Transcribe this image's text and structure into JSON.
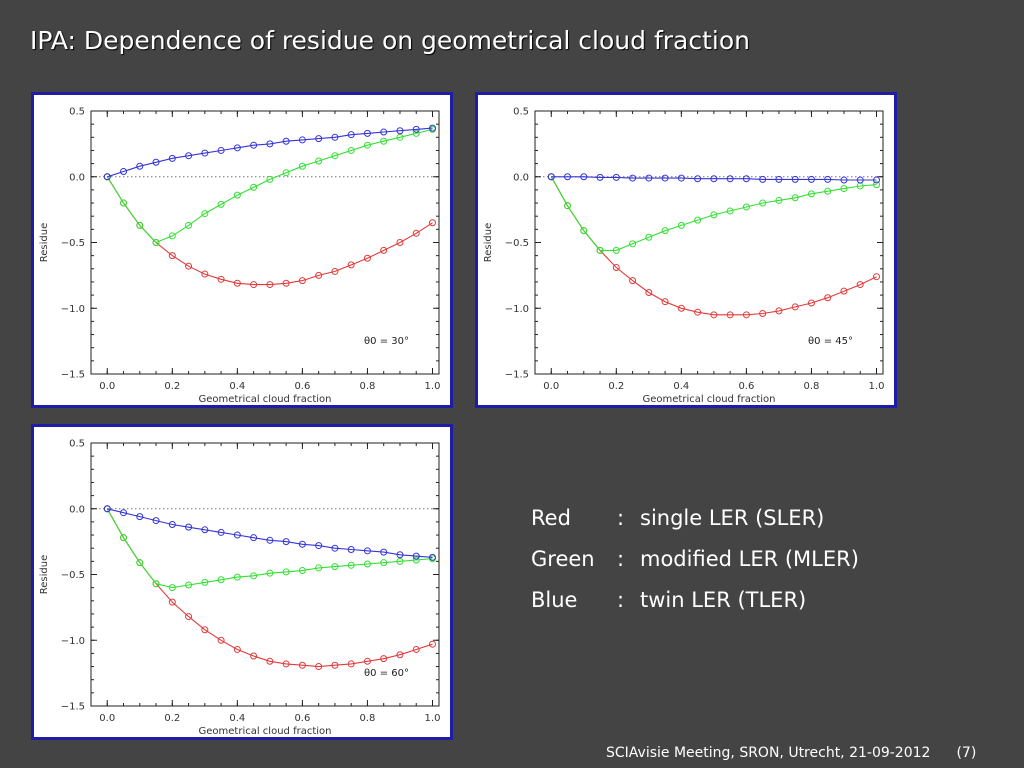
{
  "slide": {
    "title": "IPA: Dependence of residue on geometrical cloud fraction",
    "footer": "SCIAvisie Meeting, SRON, Utrecht, 21-09-2012",
    "page": "(7)"
  },
  "legend": [
    {
      "color_name": "Red",
      "sep": ":",
      "label": "single LER (SLER)"
    },
    {
      "color_name": "Green",
      "sep": ":",
      "label": "modified LER (MLER)"
    },
    {
      "color_name": "Blue",
      "sep": ":",
      "label": "twin LER (TLER)"
    }
  ],
  "colors": {
    "red": "#e23a3a",
    "green": "#33e033",
    "blue": "#3535d6",
    "frame": "#1d1da8",
    "background": "#444444"
  },
  "chart_data": [
    {
      "type": "line",
      "annotation": "θ0 = 30°",
      "xlabel": "Geometrical cloud fraction",
      "ylabel": "Residue",
      "xlim": [
        -0.05,
        1.02
      ],
      "ylim": [
        -1.5,
        0.5
      ],
      "xticks": [
        "0.0",
        "0.2",
        "0.4",
        "0.6",
        "0.8",
        "1.0"
      ],
      "yticks": [
        "0.5",
        "0.0",
        "−0.5",
        "−1.0",
        "−1.5"
      ],
      "zero_line": true,
      "x": [
        0,
        0.05,
        0.1,
        0.15,
        0.2,
        0.25,
        0.3,
        0.35,
        0.4,
        0.45,
        0.5,
        0.55,
        0.6,
        0.65,
        0.7,
        0.75,
        0.8,
        0.85,
        0.9,
        0.95,
        1.0
      ],
      "series": [
        {
          "color": "red",
          "values": [
            0,
            -0.2,
            -0.37,
            -0.5,
            -0.6,
            -0.68,
            -0.74,
            -0.78,
            -0.81,
            -0.82,
            -0.82,
            -0.81,
            -0.79,
            -0.75,
            -0.72,
            -0.67,
            -0.62,
            -0.56,
            -0.5,
            -0.43,
            -0.35
          ]
        },
        {
          "color": "green",
          "values": [
            0,
            -0.2,
            -0.37,
            -0.5,
            -0.45,
            -0.37,
            -0.28,
            -0.21,
            -0.14,
            -0.08,
            -0.02,
            0.03,
            0.08,
            0.12,
            0.16,
            0.2,
            0.24,
            0.27,
            0.3,
            0.33,
            0.36
          ]
        },
        {
          "color": "blue",
          "values": [
            0,
            0.04,
            0.08,
            0.11,
            0.14,
            0.16,
            0.18,
            0.2,
            0.22,
            0.24,
            0.25,
            0.27,
            0.28,
            0.29,
            0.3,
            0.32,
            0.33,
            0.34,
            0.35,
            0.36,
            0.37
          ]
        }
      ]
    },
    {
      "type": "line",
      "annotation": "θ0 = 45°",
      "xlabel": "Geometrical cloud fraction",
      "ylabel": "Residue",
      "xlim": [
        -0.05,
        1.02
      ],
      "ylim": [
        -1.5,
        0.5
      ],
      "xticks": [
        "0.0",
        "0.2",
        "0.4",
        "0.6",
        "0.8",
        "1.0"
      ],
      "yticks": [
        "0.5",
        "0.0",
        "−0.5",
        "−1.0",
        "−1.5"
      ],
      "zero_line": true,
      "x": [
        0,
        0.05,
        0.1,
        0.15,
        0.2,
        0.25,
        0.3,
        0.35,
        0.4,
        0.45,
        0.5,
        0.55,
        0.6,
        0.65,
        0.7,
        0.75,
        0.8,
        0.85,
        0.9,
        0.95,
        1.0
      ],
      "series": [
        {
          "color": "red",
          "values": [
            0,
            -0.22,
            -0.41,
            -0.56,
            -0.69,
            -0.79,
            -0.88,
            -0.95,
            -1.0,
            -1.03,
            -1.05,
            -1.05,
            -1.05,
            -1.04,
            -1.02,
            -0.99,
            -0.96,
            -0.92,
            -0.87,
            -0.82,
            -0.76
          ]
        },
        {
          "color": "green",
          "values": [
            0,
            -0.22,
            -0.41,
            -0.56,
            -0.56,
            -0.51,
            -0.46,
            -0.41,
            -0.37,
            -0.33,
            -0.29,
            -0.26,
            -0.23,
            -0.2,
            -0.18,
            -0.16,
            -0.13,
            -0.11,
            -0.09,
            -0.07,
            -0.06
          ]
        },
        {
          "color": "blue",
          "values": [
            0,
            0,
            0,
            -0.005,
            -0.005,
            -0.01,
            -0.01,
            -0.01,
            -0.01,
            -0.015,
            -0.015,
            -0.015,
            -0.015,
            -0.02,
            -0.02,
            -0.02,
            -0.02,
            -0.02,
            -0.025,
            -0.025,
            -0.025
          ]
        }
      ]
    },
    {
      "type": "line",
      "annotation": "θ0 = 60°",
      "xlabel": "Geometrical cloud fraction",
      "ylabel": "Residue",
      "xlim": [
        -0.05,
        1.02
      ],
      "ylim": [
        -1.5,
        0.5
      ],
      "xticks": [
        "0.0",
        "0.2",
        "0.4",
        "0.6",
        "0.8",
        "1.0"
      ],
      "yticks": [
        "0.5",
        "0.0",
        "−0.5",
        "−1.0",
        "−1.5"
      ],
      "zero_line": true,
      "x": [
        0,
        0.05,
        0.1,
        0.15,
        0.2,
        0.25,
        0.3,
        0.35,
        0.4,
        0.45,
        0.5,
        0.55,
        0.6,
        0.65,
        0.7,
        0.75,
        0.8,
        0.85,
        0.9,
        0.95,
        1.0
      ],
      "series": [
        {
          "color": "red",
          "values": [
            0,
            -0.22,
            -0.41,
            -0.57,
            -0.71,
            -0.82,
            -0.92,
            -1.0,
            -1.07,
            -1.12,
            -1.16,
            -1.18,
            -1.19,
            -1.2,
            -1.19,
            -1.18,
            -1.16,
            -1.14,
            -1.11,
            -1.07,
            -1.03
          ]
        },
        {
          "color": "green",
          "values": [
            0,
            -0.22,
            -0.41,
            -0.57,
            -0.6,
            -0.58,
            -0.56,
            -0.54,
            -0.52,
            -0.51,
            -0.49,
            -0.48,
            -0.47,
            -0.45,
            -0.44,
            -0.43,
            -0.42,
            -0.41,
            -0.4,
            -0.39,
            -0.38
          ]
        },
        {
          "color": "blue",
          "values": [
            0,
            -0.03,
            -0.06,
            -0.09,
            -0.12,
            -0.14,
            -0.16,
            -0.18,
            -0.2,
            -0.22,
            -0.24,
            -0.25,
            -0.27,
            -0.28,
            -0.3,
            -0.31,
            -0.32,
            -0.33,
            -0.35,
            -0.36,
            -0.37
          ]
        }
      ]
    }
  ]
}
